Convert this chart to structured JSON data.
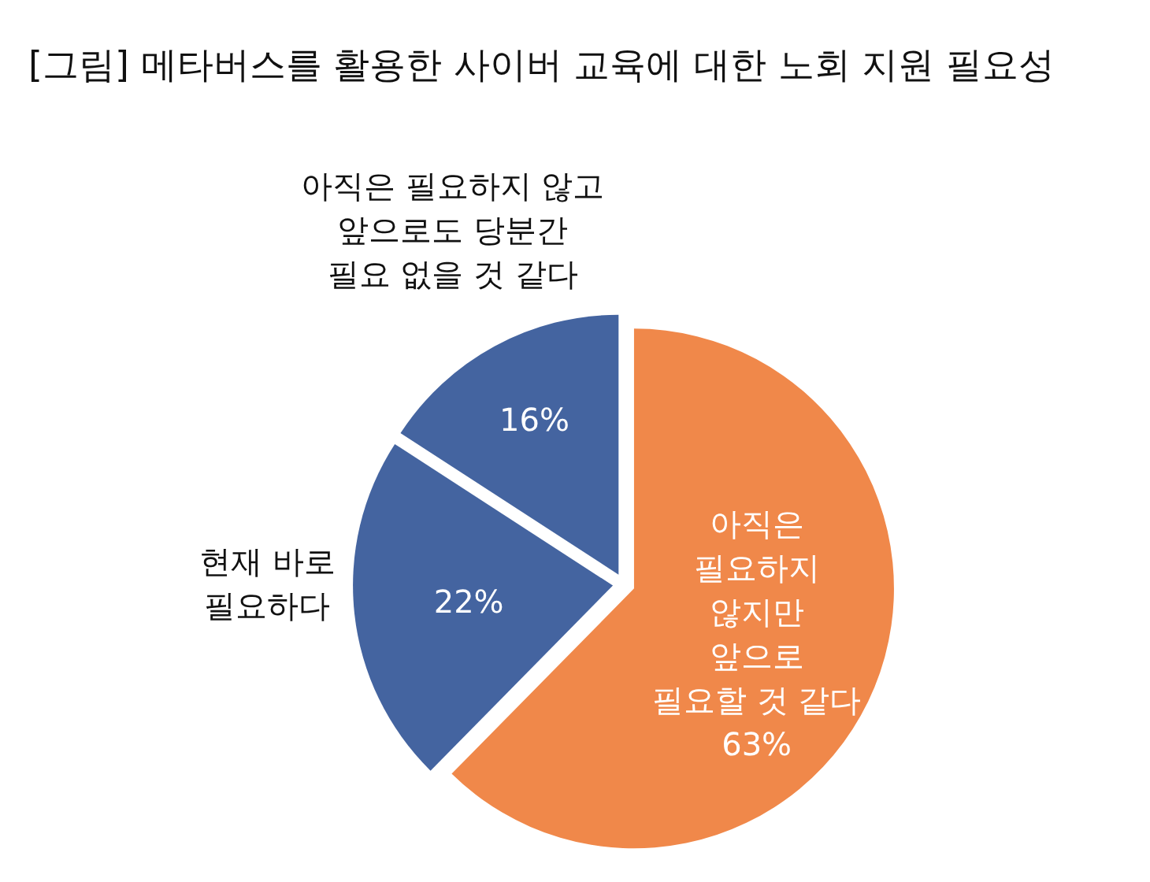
{
  "chart_data": {
    "type": "pie",
    "title": "[그림] 메타버스를 활용한 사이버 교육에 대한 노회 지원 필요성",
    "categories": [
      "아직은\n필요하지\n않지만\n앞으로\n필요할 것 같다",
      "현재 바로\n필요하다",
      "아직은 필요하지 않고\n앞으로도 당분간\n필요 없을 것 같다"
    ],
    "values": [
      63,
      22,
      16
    ],
    "colors": [
      "#f0884a",
      "#4464a0",
      "#4464a0"
    ],
    "value_labels": [
      "63%",
      "22%",
      "16%"
    ],
    "legend": false
  }
}
